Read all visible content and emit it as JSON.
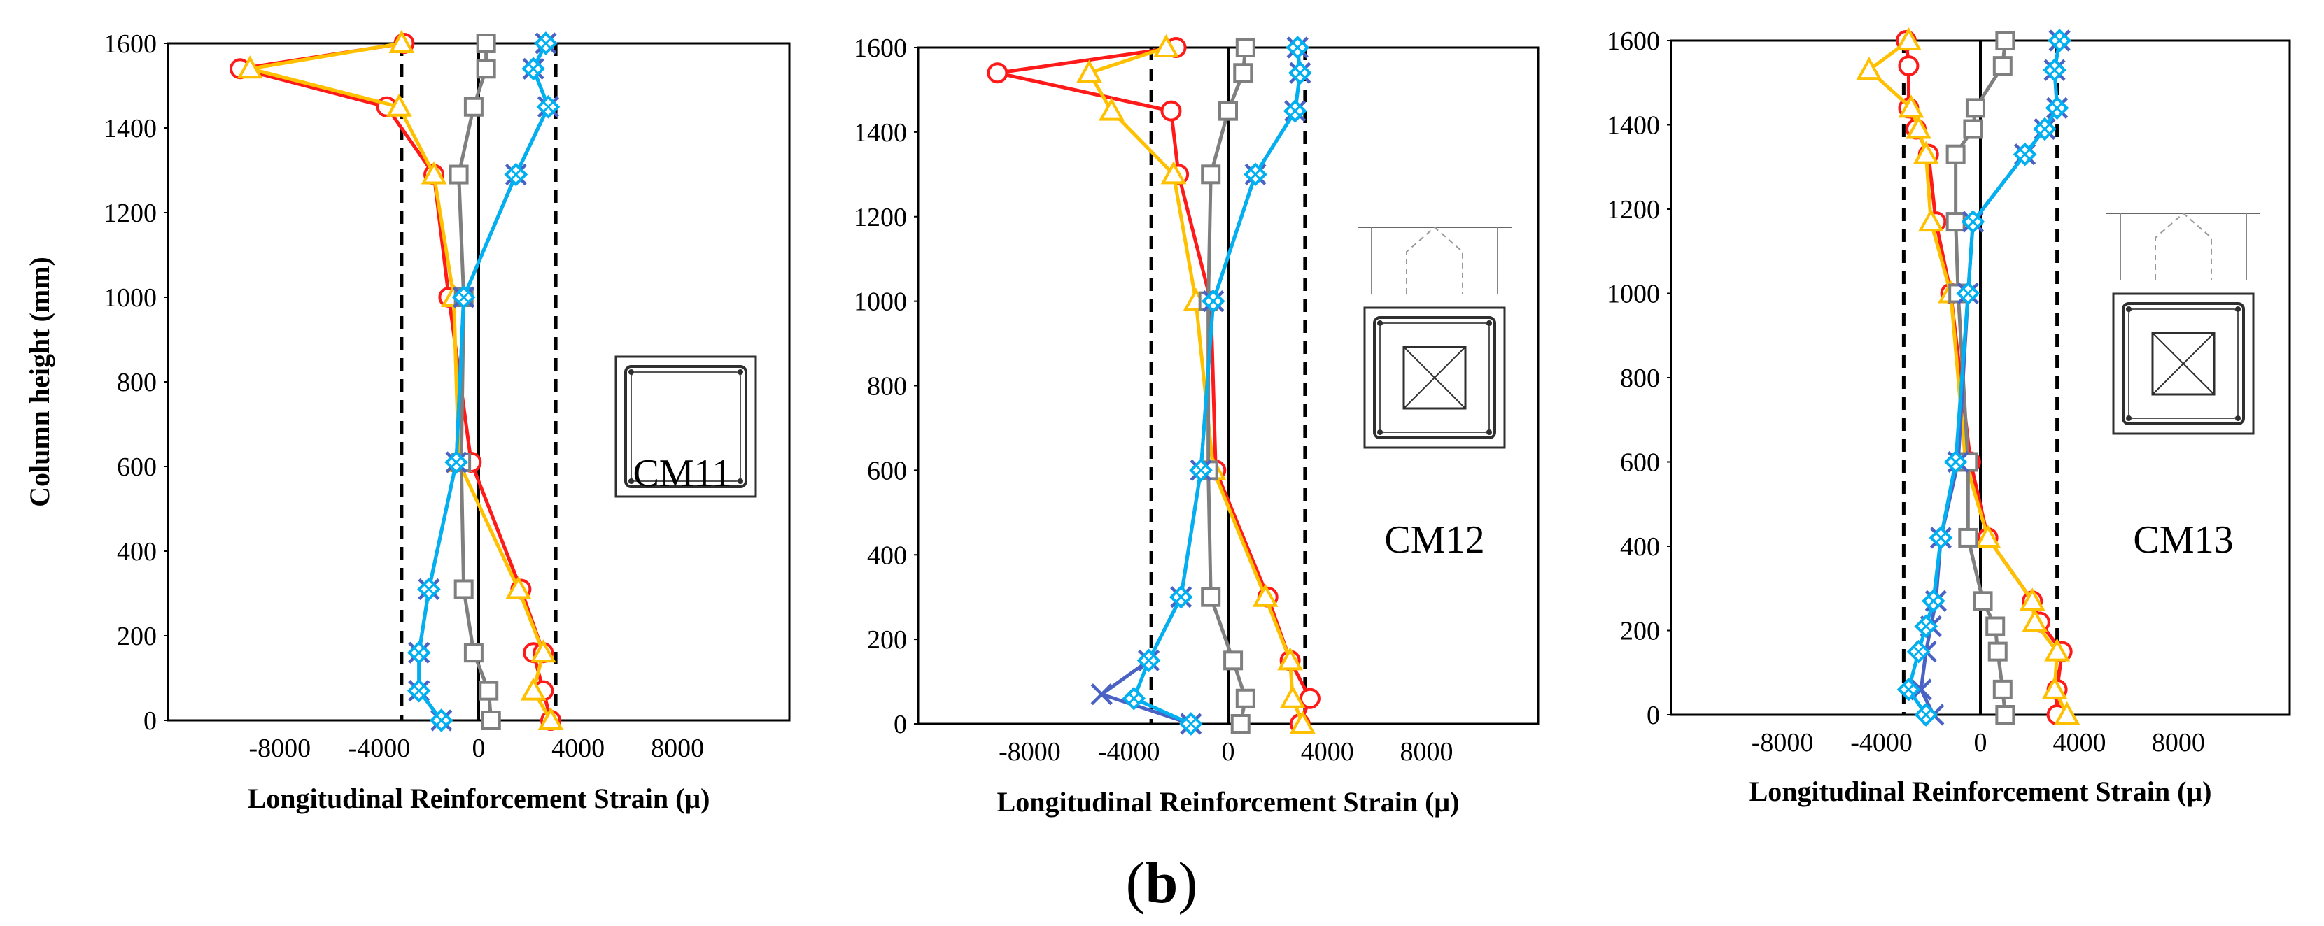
{
  "colors": {
    "red": "#ff1a1a",
    "orange": "#ffc000",
    "gray": "#7f7f7f",
    "blue": "#00b0f0",
    "darkblue": "#4a62c4",
    "frame": "#000000"
  },
  "caption": {
    "open": "(",
    "letter": "b",
    "close": ")"
  },
  "chart_data": [
    {
      "type": "line",
      "panel_label": "CM11",
      "xlabel": "Longitudinal Reinforcement Strain (μ)",
      "ylabel": "Column height (mm)",
      "xlim": [
        -12500,
        12500
      ],
      "ylim": [
        0,
        1600
      ],
      "xticks": [
        -8000,
        -4000,
        0,
        4000,
        8000
      ],
      "xtick_labels": [
        "-8000",
        "-4000",
        "0",
        "4000",
        "8000"
      ],
      "yticks": [
        0,
        200,
        400,
        600,
        800,
        1000,
        1200,
        1400,
        1600
      ],
      "ytick_labels": [
        "0",
        "200",
        "400",
        "600",
        "800",
        "1000",
        "1200",
        "1400",
        "1600"
      ],
      "yield_lines": [
        -3100,
        3100
      ],
      "icon": "square-section",
      "series": [
        {
          "name": "circle",
          "color": "red",
          "marker": "circle",
          "x": [
            2900,
            2600,
            2200,
            2600,
            1700,
            -300,
            -1200,
            -1800,
            -3700,
            -9600,
            -3000
          ],
          "y": [
            0,
            70,
            160,
            160,
            310,
            610,
            1000,
            1290,
            1450,
            1540,
            1600
          ]
        },
        {
          "name": "triangle",
          "color": "orange",
          "marker": "triangle",
          "x": [
            2900,
            2200,
            2600,
            1600,
            -800,
            -1000,
            -1800,
            -3200,
            -9200,
            -3100
          ],
          "y": [
            0,
            70,
            160,
            310,
            610,
            1000,
            1290,
            1450,
            1540,
            1600
          ]
        },
        {
          "name": "square",
          "color": "gray",
          "marker": "square",
          "x": [
            500,
            400,
            -200,
            -600,
            -700,
            -600,
            -800,
            -200,
            300,
            300
          ],
          "y": [
            0,
            70,
            160,
            310,
            610,
            1000,
            1290,
            1450,
            1540,
            1600
          ]
        },
        {
          "name": "cross",
          "color": "darkblue",
          "marker": "x",
          "x": [
            -1500,
            -2400,
            -2400,
            -2000,
            -900,
            -600,
            1500,
            2800,
            2200,
            2700
          ],
          "y": [
            0,
            70,
            160,
            310,
            610,
            1000,
            1290,
            1450,
            1540,
            1600
          ]
        },
        {
          "name": "diamond",
          "color": "blue",
          "marker": "diamond",
          "x": [
            -1500,
            -2400,
            -2400,
            -2000,
            -900,
            -600,
            1500,
            2800,
            2200,
            2700
          ],
          "y": [
            0,
            70,
            160,
            310,
            610,
            1000,
            1290,
            1450,
            1540,
            1600
          ]
        }
      ]
    },
    {
      "type": "line",
      "panel_label": "CM12",
      "xlabel": "Longitudinal Reinforcement Strain (μ)",
      "ylabel": "",
      "xlim": [
        -12500,
        12500
      ],
      "ylim": [
        0,
        1600
      ],
      "xticks": [
        -8000,
        -4000,
        0,
        4000,
        8000
      ],
      "xtick_labels": [
        "-8000",
        "-4000",
        "0",
        "4000",
        "8000"
      ],
      "yticks": [
        0,
        200,
        400,
        600,
        800,
        1000,
        1200,
        1400,
        1600
      ],
      "ytick_labels": [
        "0",
        "200",
        "400",
        "600",
        "800",
        "1000",
        "1200",
        "1400",
        "1600"
      ],
      "yield_lines": [
        -3100,
        3100
      ],
      "icon": "section-with-pyramid",
      "series": [
        {
          "name": "circle",
          "color": "red",
          "marker": "circle",
          "x": [
            2900,
            3300,
            2500,
            1600,
            -500,
            -700,
            -2000,
            -2300,
            -9300,
            -2100
          ],
          "y": [
            0,
            60,
            150,
            300,
            600,
            1000,
            1300,
            1450,
            1540,
            1600
          ]
        },
        {
          "name": "triangle",
          "color": "orange",
          "marker": "triangle",
          "x": [
            3000,
            2600,
            2500,
            1500,
            -600,
            -1300,
            -2200,
            -4700,
            -5600,
            -2500
          ],
          "y": [
            0,
            60,
            150,
            300,
            600,
            1000,
            1300,
            1450,
            1540,
            1600
          ]
        },
        {
          "name": "square",
          "color": "gray",
          "marker": "square",
          "x": [
            500,
            700,
            200,
            -700,
            -800,
            -800,
            -700,
            0,
            600,
            700
          ],
          "y": [
            0,
            60,
            150,
            300,
            600,
            1000,
            1300,
            1450,
            1540,
            1600
          ]
        },
        {
          "name": "cross",
          "color": "darkblue",
          "marker": "x",
          "x": [
            -1500,
            -5100,
            -3200,
            -1900,
            -1100,
            -600,
            1100,
            2700,
            2900,
            2800
          ],
          "y": [
            0,
            70,
            150,
            300,
            600,
            1000,
            1300,
            1450,
            1540,
            1600
          ]
        },
        {
          "name": "diamond",
          "color": "blue",
          "marker": "diamond",
          "x": [
            -1500,
            -3800,
            -3200,
            -1900,
            -1100,
            -600,
            1100,
            2700,
            2900,
            2800
          ],
          "y": [
            0,
            60,
            150,
            300,
            600,
            1000,
            1300,
            1450,
            1540,
            1600
          ]
        }
      ]
    },
    {
      "type": "line",
      "panel_label": "CM13",
      "xlabel": "Longitudinal Reinforcement Strain (μ)",
      "ylabel": "",
      "xlim": [
        -12500,
        12500
      ],
      "ylim": [
        0,
        1600
      ],
      "xticks": [
        -8000,
        -4000,
        0,
        4000,
        8000
      ],
      "xtick_labels": [
        "-8000",
        "-4000",
        "0",
        "4000",
        "8000"
      ],
      "yticks": [
        0,
        200,
        400,
        600,
        800,
        1000,
        1200,
        1400,
        1600
      ],
      "ytick_labels": [
        "0",
        "200",
        "400",
        "600",
        "800",
        "1000",
        "1200",
        "1400",
        "1600"
      ],
      "yield_lines": [
        -3100,
        3100
      ],
      "icon": "section-with-pyramid",
      "series": [
        {
          "name": "circle",
          "color": "red",
          "marker": "circle",
          "x": [
            3100,
            3100,
            3300,
            2400,
            2100,
            300,
            -400,
            -1200,
            -1800,
            -2100,
            -2600,
            -2900,
            -2900,
            -3000
          ],
          "y": [
            0,
            60,
            150,
            220,
            270,
            420,
            600,
            1000,
            1170,
            1330,
            1390,
            1440,
            1540,
            1600
          ]
        },
        {
          "name": "triangle",
          "color": "orange",
          "marker": "triangle",
          "x": [
            3500,
            3000,
            3100,
            2200,
            2100,
            300,
            -600,
            -1200,
            -2000,
            -2200,
            -2500,
            -2800,
            -4500,
            -2900
          ],
          "y": [
            0,
            60,
            150,
            220,
            270,
            420,
            600,
            1000,
            1170,
            1330,
            1390,
            1440,
            1530,
            1600
          ]
        },
        {
          "name": "square",
          "color": "gray",
          "marker": "square",
          "x": [
            1000,
            900,
            700,
            600,
            100,
            -500,
            -500,
            -900,
            -1000,
            -1000,
            -300,
            -200,
            900,
            1000
          ],
          "y": [
            0,
            60,
            150,
            210,
            270,
            420,
            600,
            1000,
            1170,
            1330,
            1390,
            1440,
            1540,
            1600
          ]
        },
        {
          "name": "cross",
          "color": "darkblue",
          "marker": "x",
          "x": [
            -1900,
            -2400,
            -2200,
            -2000,
            -1800,
            -1600,
            -900,
            -500,
            -300,
            1800,
            2600,
            3100,
            3000,
            3200
          ],
          "y": [
            0,
            60,
            150,
            210,
            270,
            420,
            600,
            1000,
            1170,
            1330,
            1390,
            1440,
            1530,
            1600
          ]
        },
        {
          "name": "diamond",
          "color": "blue",
          "marker": "diamond",
          "x": [
            -2200,
            -2900,
            -2500,
            -2200,
            -1900,
            -1600,
            -1000,
            -500,
            -300,
            1800,
            2600,
            3100,
            3000,
            3200
          ],
          "y": [
            0,
            60,
            150,
            210,
            270,
            420,
            600,
            1000,
            1170,
            1330,
            1390,
            1440,
            1530,
            1600
          ]
        }
      ]
    }
  ]
}
